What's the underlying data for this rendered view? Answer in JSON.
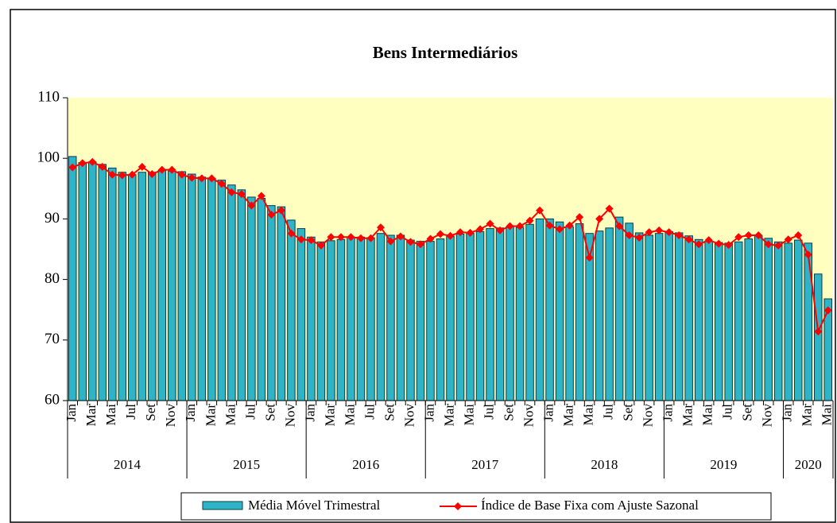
{
  "chart_data": {
    "type": "bar",
    "title": "Bens Intermediários",
    "categories": [
      "Jan",
      null,
      "Mar",
      null,
      "Mai",
      null,
      "Jul",
      null,
      "Set",
      null,
      "Nov",
      null,
      "Jan",
      null,
      "Mar",
      null,
      "Mai",
      null,
      "Jul",
      null,
      "Set",
      null,
      "Nov",
      null,
      "Jan",
      null,
      "Mar",
      null,
      "Mai",
      null,
      "Jul",
      null,
      "Set",
      null,
      "Nov",
      null,
      "Jan",
      null,
      "Mar",
      null,
      "Mai",
      null,
      "Jul",
      null,
      "Set",
      null,
      "Nov",
      null,
      "Jan",
      null,
      "Mar",
      null,
      "Mai",
      null,
      "Jul",
      null,
      "Set",
      null,
      "Nov",
      null,
      "Jan",
      null,
      "Mar",
      null,
      "Mai",
      null,
      "Jul",
      null,
      "Set",
      null,
      "Nov",
      null,
      "Jan",
      null,
      "Mar",
      null,
      "Mai"
    ],
    "groups": [
      {
        "label": "2014",
        "count": 12
      },
      {
        "label": "2015",
        "count": 12
      },
      {
        "label": "2016",
        "count": 12
      },
      {
        "label": "2017",
        "count": 12
      },
      {
        "label": "2018",
        "count": 12
      },
      {
        "label": "2019",
        "count": 12
      },
      {
        "label": "2020",
        "count": 5
      }
    ],
    "series": [
      {
        "name": "Média Móvel Trimestral",
        "type": "bar",
        "color": "#2fb3c6",
        "values": [
          100.3,
          99.3,
          99.4,
          99.0,
          98.4,
          97.7,
          97.3,
          97.7,
          97.7,
          98.0,
          97.9,
          97.8,
          97.4,
          96.9,
          96.7,
          96.4,
          95.6,
          94.8,
          93.6,
          93.4,
          92.2,
          92.0,
          89.8,
          88.4,
          87.0,
          86.2,
          86.4,
          86.6,
          87.0,
          87.0,
          86.9,
          87.6,
          87.3,
          87.3,
          86.5,
          86.3,
          86.3,
          86.7,
          87.1,
          87.5,
          87.6,
          87.9,
          88.4,
          88.5,
          88.7,
          88.6,
          89.1,
          90.0,
          90.0,
          89.5,
          88.7,
          89.2,
          87.6,
          88.0,
          88.5,
          90.3,
          89.3,
          87.7,
          87.3,
          87.6,
          87.9,
          87.7,
          87.2,
          86.6,
          86.3,
          86.1,
          86.0,
          86.2,
          86.7,
          87.2,
          86.8,
          86.2,
          86.0,
          86.5,
          86.0,
          80.9,
          76.8
        ]
      },
      {
        "name": "Índice de Base Fixa com Ajuste Sazonal",
        "type": "line",
        "color": "#ff0000",
        "values": [
          98.5,
          99.2,
          99.4,
          98.6,
          97.3,
          97.2,
          97.3,
          98.6,
          97.4,
          98.1,
          98.1,
          97.3,
          96.8,
          96.7,
          96.7,
          95.8,
          94.4,
          94.1,
          92.2,
          93.8,
          90.7,
          91.4,
          87.6,
          86.6,
          86.5,
          85.6,
          87.0,
          87.0,
          87.0,
          86.8,
          86.8,
          88.6,
          86.3,
          87.1,
          86.2,
          85.8,
          86.7,
          87.5,
          87.2,
          87.8,
          87.7,
          88.3,
          89.2,
          88.1,
          88.8,
          88.8,
          89.7,
          91.4,
          88.9,
          88.3,
          88.9,
          90.3,
          83.6,
          90.0,
          91.7,
          88.8,
          87.3,
          86.9,
          87.8,
          88.1,
          87.8,
          87.3,
          86.6,
          85.8,
          86.5,
          85.9,
          85.7,
          87.0,
          87.3,
          87.3,
          85.8,
          85.6,
          86.6,
          87.3,
          84.1,
          71.4,
          74.9
        ]
      }
    ],
    "ylim": [
      60,
      110
    ],
    "yticks": [
      60,
      70,
      80,
      90,
      100,
      110
    ],
    "grid": false,
    "background": "#ffffc0",
    "legend": "bottom"
  }
}
